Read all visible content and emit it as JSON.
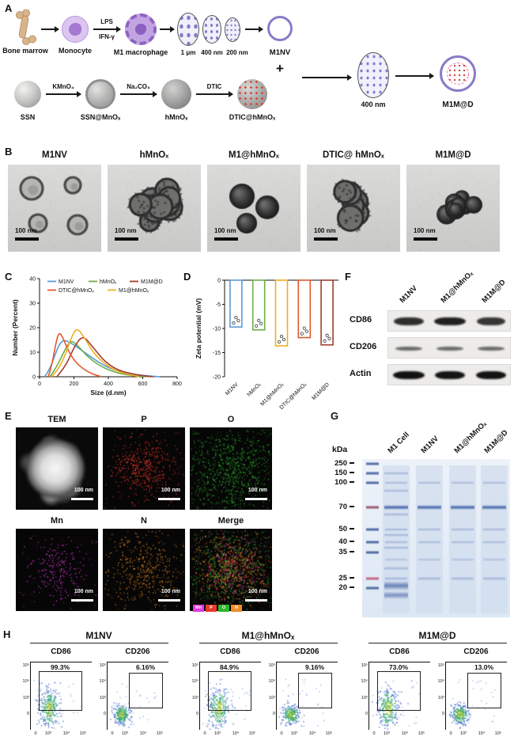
{
  "panel_a": {
    "label": "A",
    "bone_marrow": "Bone marrow",
    "monocyte": "Monocyte",
    "lps": "LPS",
    "ifn_gamma": "IFN-γ",
    "m1_macrophage": "M1 macrophage",
    "size_1um": "1 μm",
    "size_400nm": "400 nm",
    "size_200nm": "200 nm",
    "m1nv": "M1NV",
    "plus": "+",
    "ssn": "SSN",
    "kmno4": "KMnO₄",
    "ssn_mnox": "SSN@MnOₓ",
    "na2co3": "Na₂CO₃",
    "hmnox": "hMnOₓ",
    "dtic": "DTIC",
    "dtic_hmnox": "DTIC@hMnOₓ",
    "final_size": "400 nm",
    "m1md": "M1M@D"
  },
  "panel_b": {
    "label": "B",
    "items": [
      {
        "title": "M1NV",
        "scale": "100 nm"
      },
      {
        "title": "hMnOₓ",
        "scale": "100 nm"
      },
      {
        "title": "M1@hMnOₓ",
        "scale": "100 nm"
      },
      {
        "title": "DTIC@ hMnOₓ",
        "scale": "100 nm"
      },
      {
        "title": "M1M@D",
        "scale": "100 nm"
      }
    ]
  },
  "panel_c": {
    "label": "C"
  },
  "panel_d": {
    "label": "D"
  },
  "chart_data": [
    {
      "id": "size_distribution",
      "type": "line",
      "xlabel": "Size (d.nm)",
      "ylabel": "Number (Percent)",
      "xlim": [
        0,
        800
      ],
      "ylim": [
        0,
        40
      ],
      "xticks": [
        0,
        200,
        400,
        600,
        800
      ],
      "yticks": [
        0,
        10,
        20,
        30,
        40
      ],
      "legend_position": "top",
      "grid": false,
      "series": [
        {
          "name": "M1NV",
          "color": "#5B9BD5",
          "points": [
            [
              30,
              0
            ],
            [
              60,
              3
            ],
            [
              90,
              9
            ],
            [
              120,
              14
            ],
            [
              150,
              15
            ],
            [
              200,
              13
            ],
            [
              260,
              10
            ],
            [
              340,
              6
            ],
            [
              420,
              3
            ],
            [
              500,
              1.5
            ],
            [
              600,
              0.5
            ],
            [
              700,
              0
            ]
          ]
        },
        {
          "name": "hMnOₓ",
          "color": "#70AD47",
          "points": [
            [
              60,
              0
            ],
            [
              100,
              4
            ],
            [
              140,
              10
            ],
            [
              180,
              15
            ],
            [
              220,
              13
            ],
            [
              280,
              8
            ],
            [
              360,
              4
            ],
            [
              450,
              1.5
            ],
            [
              550,
              0.3
            ],
            [
              650,
              0
            ]
          ]
        },
        {
          "name": "M1M@D",
          "color": "#A33B2E",
          "points": [
            [
              100,
              0
            ],
            [
              150,
              4
            ],
            [
              200,
              12
            ],
            [
              250,
              17
            ],
            [
              300,
              13
            ],
            [
              380,
              6
            ],
            [
              460,
              2.5
            ],
            [
              560,
              0.8
            ],
            [
              660,
              0
            ]
          ]
        },
        {
          "name": "DTIC@hMnOₓ",
          "color": "#E2582F",
          "points": [
            [
              50,
              0
            ],
            [
              70,
              4
            ],
            [
              90,
              12
            ],
            [
              110,
              18
            ],
            [
              130,
              17
            ],
            [
              170,
              10
            ],
            [
              220,
              5
            ],
            [
              290,
              1.5
            ],
            [
              360,
              0
            ]
          ]
        },
        {
          "name": "M1@hMnOₓ",
          "color": "#EFAF1F",
          "points": [
            [
              70,
              0
            ],
            [
              110,
              3
            ],
            [
              150,
              9
            ],
            [
              190,
              17
            ],
            [
              220,
              20
            ],
            [
              260,
              16
            ],
            [
              320,
              9
            ],
            [
              400,
              4
            ],
            [
              480,
              1.5
            ],
            [
              580,
              0
            ]
          ]
        }
      ]
    },
    {
      "id": "zeta_potential",
      "type": "bar",
      "ylabel": "Zeta potential (mV)",
      "ylim": [
        -20,
        0
      ],
      "yticks": [
        0,
        -5,
        -10,
        -15,
        -20
      ],
      "categories": [
        "M1NV",
        "hMnOₓ",
        "M1@hMnOₓ",
        "DTIC@hMnOₓ",
        "M1M@D"
      ],
      "values": [
        -9.7,
        -10.3,
        -13.6,
        -11.9,
        -13.4
      ],
      "colors": [
        "#5B9BD5",
        "#70AD47",
        "#EFAF1F",
        "#E2582F",
        "#A33B2E"
      ]
    }
  ],
  "panel_e": {
    "label": "E",
    "tiles": [
      {
        "name": "TEM",
        "scale": "100 nm"
      },
      {
        "name": "P",
        "scale": "100 nm"
      },
      {
        "name": "O",
        "scale": "100 nm"
      },
      {
        "name": "Mn",
        "scale": "100 nm"
      },
      {
        "name": "N",
        "scale": "100 nm"
      },
      {
        "name": "Merge",
        "scale": "100 nm"
      }
    ],
    "dot_colors": {
      "P": "#e8392b",
      "O": "#2db52d",
      "Mn": "#e23ae2",
      "N": "#f08c28"
    },
    "merge_legend": [
      {
        "label": "Mn",
        "color": "#e23ae2"
      },
      {
        "label": "P",
        "color": "#e8392b"
      },
      {
        "label": "O",
        "color": "#2db52d"
      },
      {
        "label": "N",
        "color": "#f08c28"
      }
    ]
  },
  "panel_f": {
    "label": "F",
    "lanes": [
      "M1NV",
      "M1@hMnOₓ",
      "M1M@D"
    ],
    "rows": [
      "CD86",
      "CD206",
      "Actin"
    ]
  },
  "panel_g": {
    "label": "G",
    "unit": "kDa",
    "ladder": [
      "250",
      "150",
      "100",
      "70",
      "50",
      "40",
      "35",
      "25",
      "20"
    ],
    "lanes": [
      "M1 Cell",
      "M1NV",
      "M1@hMnOₓ",
      "M1M@D"
    ]
  },
  "panel_h": {
    "label": "H",
    "groups": [
      {
        "name": "M1NV",
        "plots": [
          {
            "marker": "CD86",
            "pct": "99.3%"
          },
          {
            "marker": "CD206",
            "pct": "6.16%"
          }
        ]
      },
      {
        "name": "M1@hMnOₓ",
        "plots": [
          {
            "marker": "CD86",
            "pct": "84.9%"
          },
          {
            "marker": "CD206",
            "pct": "9.16%"
          }
        ]
      },
      {
        "name": "M1M@D",
        "plots": [
          {
            "marker": "CD86",
            "pct": "73.0%"
          },
          {
            "marker": "CD206",
            "pct": "13.0%"
          }
        ]
      }
    ],
    "ytick_labels": [
      "10⁵",
      "10⁴",
      "10³",
      "0"
    ],
    "xtick_labels": [
      "0",
      "10³",
      "10⁴",
      "10⁵"
    ]
  }
}
